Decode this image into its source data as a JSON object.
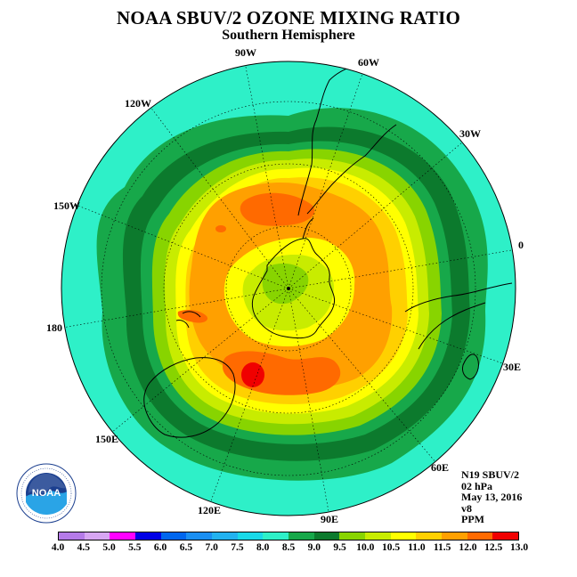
{
  "title": "NOAA SBUV/2 OZONE MIXING RATIO",
  "subtitle": "Southern Hemisphere",
  "longitude_labels": {
    "w90": "90W",
    "w60": "60W",
    "w30": "30W",
    "e0": "0",
    "w120": "120W",
    "w150": "150W",
    "d180": "180",
    "e30": "30E",
    "e60": "60E",
    "e90": "90E",
    "e120": "120E",
    "e150": "150E"
  },
  "info": {
    "satellite": "N19 SBUV/2",
    "level": "02 hPa",
    "date": "May 13, 2016",
    "version": "v8",
    "units": "PPM"
  },
  "logo": {
    "text": "NOAA",
    "ring_text": "NATIONAL OCEANIC AND ATMOSPHERIC ADMINISTRATION · U.S. DEPARTMENT OF COMMERCE"
  },
  "colorbar": {
    "ticks": [
      "4.0",
      "4.5",
      "5.0",
      "5.5",
      "6.0",
      "6.5",
      "7.0",
      "7.5",
      "8.0",
      "8.5",
      "9.0",
      "9.5",
      "10.0",
      "10.5",
      "11.0",
      "11.5",
      "12.0",
      "12.5",
      "13.0"
    ],
    "colors": [
      "#b57be8",
      "#d7a6f2",
      "#ff00ff",
      "#0000e6",
      "#0066ee",
      "#1a8ff2",
      "#22b2f0",
      "#19d9e8",
      "#2ef0c8",
      "#17a84a",
      "#0c7a2d",
      "#88d400",
      "#c8ec00",
      "#ffff00",
      "#ffd000",
      "#ffa000",
      "#ff6a00",
      "#f00000",
      "#8b4a2a"
    ]
  },
  "map": {
    "projection": "south polar stereographic",
    "level_bands_ppm": [
      "8.0",
      "8.5",
      "9.0",
      "9.5",
      "10.0",
      "10.5",
      "11.0",
      "11.5",
      "12.0"
    ],
    "band_colors": [
      "#2ef0c8",
      "#17a84a",
      "#0c7a2d",
      "#17a84a",
      "#88d400",
      "#c8ec00",
      "#ffff00",
      "#ffd000",
      "#ffa000",
      "#ff6a00",
      "#f00000"
    ],
    "coast_color": "#000000",
    "grid": "dotted"
  }
}
